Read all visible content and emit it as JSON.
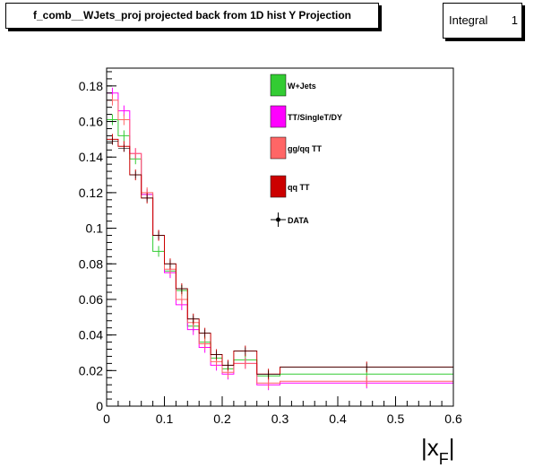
{
  "header": {
    "title": "f_comb__WJets_proj projected back from 1D hist Y Projection",
    "stat_label": "Integral",
    "stat_value": "1"
  },
  "colors": {
    "wjets": "#33cc33",
    "tt_singlet_dy": "#ff00ff",
    "ggqq_tt": "#ff6666",
    "qq_tt": "#cc0000",
    "data": "#000000"
  },
  "chart_data": {
    "type": "line",
    "title": "f_comb__WJets_proj projected back from 1D hist Y Projection",
    "xlabel": "|x_F|",
    "ylabel": "",
    "xlim": [
      0,
      0.6
    ],
    "ylim": [
      0,
      0.19
    ],
    "x_ticks": [
      "0",
      "0.1",
      "0.2",
      "0.3",
      "0.4",
      "0.5",
      "0.6"
    ],
    "y_ticks": [
      "0",
      "0.02",
      "0.04",
      "0.06",
      "0.08",
      "0.1",
      "0.12",
      "0.14",
      "0.16",
      "0.18"
    ],
    "bin_edges": [
      0,
      0.02,
      0.04,
      0.06,
      0.08,
      0.1,
      0.12,
      0.14,
      0.16,
      0.18,
      0.2,
      0.22,
      0.26,
      0.3,
      0.6
    ],
    "legend": [
      "W+Jets",
      "TT/SingleT/DY",
      "gg/qq TT",
      "qq TT",
      "DATA"
    ],
    "series": [
      {
        "name": "W+Jets",
        "color_key": "wjets",
        "values": [
          0.161,
          0.152,
          0.139,
          0.119,
          0.087,
          0.076,
          0.065,
          0.045,
          0.036,
          0.027,
          0.021,
          0.026,
          0.017,
          0.018
        ]
      },
      {
        "name": "TT/SingleT/DY",
        "color_key": "tt_singlet_dy",
        "values": [
          0.176,
          0.166,
          0.142,
          0.119,
          0.096,
          0.075,
          0.057,
          0.043,
          0.033,
          0.023,
          0.018,
          0.024,
          0.012,
          0.013
        ]
      },
      {
        "name": "gg/qq TT",
        "color_key": "ggqq_tt",
        "values": [
          0.172,
          0.161,
          0.142,
          0.12,
          0.096,
          0.077,
          0.06,
          0.047,
          0.035,
          0.025,
          0.019,
          0.024,
          0.013,
          0.014
        ]
      },
      {
        "name": "qq TT",
        "color_key": "qq_tt",
        "values": [
          0.15,
          0.146,
          0.13,
          0.117,
          0.096,
          0.08,
          0.066,
          0.049,
          0.041,
          0.029,
          0.023,
          0.031,
          0.018,
          0.022
        ]
      },
      {
        "name": "DATA",
        "color_key": "data",
        "values": [
          0.149,
          0.145,
          0.13,
          0.117,
          0.096,
          0.08,
          0.066,
          0.049,
          0.041,
          0.029,
          0.023,
          0.031,
          0.018,
          0.022
        ]
      }
    ]
  }
}
